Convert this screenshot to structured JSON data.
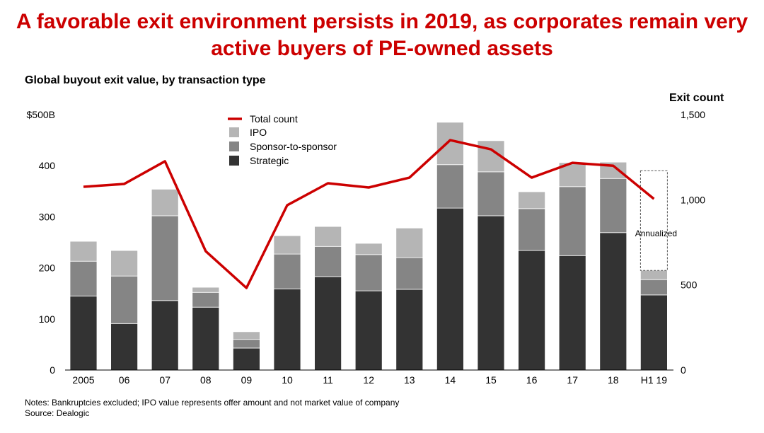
{
  "title": "A favorable exit environment persists in 2019, as corporates remain very active buyers of PE-owned assets",
  "notes": "Notes: Bankruptcies excluded; IPO value represents offer amount and not market value of company",
  "source": "Source: Dealogic",
  "chart_data": {
    "type": "bar",
    "stacked": true,
    "title": "Global buyout exit value, by transaction type",
    "ylabel": "",
    "y2label": "Exit count",
    "ylim": [
      0,
      500
    ],
    "y2lim": [
      0,
      1500
    ],
    "yticks": [
      "0",
      "100",
      "200",
      "300",
      "400",
      "$500B"
    ],
    "yticks_values": [
      0,
      100,
      200,
      300,
      400,
      500
    ],
    "y2ticks": [
      "0",
      "500",
      "1,000",
      "1,500"
    ],
    "y2ticks_values": [
      0,
      500,
      1000,
      1500
    ],
    "categories": [
      "2005",
      "06",
      "07",
      "08",
      "09",
      "10",
      "11",
      "12",
      "13",
      "14",
      "15",
      "16",
      "17",
      "18",
      "H1 19"
    ],
    "series": [
      {
        "name": "Strategic",
        "color": "#333333",
        "values": [
          145,
          91,
          136,
          123,
          43,
          159,
          183,
          155,
          158,
          317,
          302,
          234,
          224,
          269,
          147
        ]
      },
      {
        "name": "Sponsor-to-sponsor",
        "color": "#858585",
        "values": [
          68,
          93,
          166,
          29,
          17,
          68,
          59,
          71,
          62,
          85,
          86,
          82,
          135,
          106,
          30
        ]
      },
      {
        "name": "IPO",
        "color": "#b5b5b5",
        "values": [
          39,
          50,
          52,
          10,
          15,
          36,
          39,
          22,
          58,
          83,
          61,
          33,
          47,
          32,
          18
        ]
      }
    ],
    "line_series": {
      "name": "Total count",
      "color": "#cc0000",
      "axis": "right",
      "values": [
        1076,
        1093,
        1226,
        698,
        482,
        968,
        1097,
        1072,
        1130,
        1350,
        1296,
        1130,
        1217,
        1200,
        1005
      ]
    },
    "annotation": {
      "label": "Annualized",
      "category": "H1 19",
      "annualized_total": 390
    },
    "legend_position": "top-center",
    "grid": false
  }
}
